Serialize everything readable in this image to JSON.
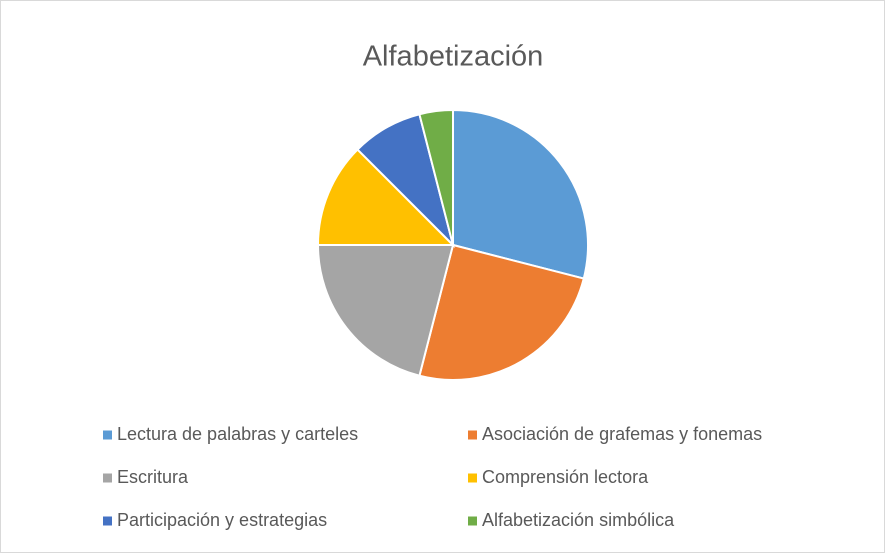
{
  "chart_data": {
    "type": "pie",
    "title": "Alfabetización",
    "categories": [
      "Lectura de palabras y carteles",
      "Asociación de grafemas y fonemas",
      "Escritura",
      "Comprensión lectora",
      "Participación y estrategias",
      "Alfabetización simbólica"
    ],
    "values": [
      29,
      25,
      21,
      12.5,
      8.5,
      4
    ],
    "colors": [
      "#5b9bd5",
      "#ed7d31",
      "#a5a5a5",
      "#ffc000",
      "#4472c4",
      "#70ad47"
    ],
    "legend": "bottom"
  }
}
